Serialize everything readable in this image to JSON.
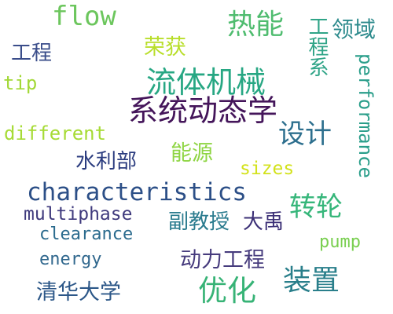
{
  "words": [
    {
      "key": "flow",
      "text": "flow",
      "color": "#6cc65d"
    },
    {
      "key": "reneng",
      "text": "热能",
      "color": "#4fbc6f"
    },
    {
      "key": "gongchengxi",
      "text": "工程系",
      "color": "#2fa487"
    },
    {
      "key": "lingyu",
      "text": "领域",
      "color": "#2c8a8c"
    },
    {
      "key": "gongcheng",
      "text": "工程",
      "color": "#3a4d8a"
    },
    {
      "key": "ronghuo",
      "text": "荣获",
      "color": "#b8de29"
    },
    {
      "key": "liuti",
      "text": "流体机械",
      "color": "#27a783"
    },
    {
      "key": "tip",
      "text": "tip",
      "color": "#a2d836"
    },
    {
      "key": "performance",
      "text": "performance",
      "color": "#2a9e8a"
    },
    {
      "key": "xitong",
      "text": "系统动态学",
      "color": "#44155a"
    },
    {
      "key": "sheji",
      "text": "设计",
      "color": "#2d6f8e"
    },
    {
      "key": "different",
      "text": "different",
      "color": "#a6db35"
    },
    {
      "key": "nengyuan",
      "text": "能源",
      "color": "#8fd544"
    },
    {
      "key": "shuilibu",
      "text": "水利部",
      "color": "#2b3c7f"
    },
    {
      "key": "sizes",
      "text": "sizes",
      "color": "#d3e21c"
    },
    {
      "key": "characteristics",
      "text": "characteristics",
      "color": "#2c4f87"
    },
    {
      "key": "zhuanlun",
      "text": "转轮",
      "color": "#36b67a"
    },
    {
      "key": "multiphase",
      "text": "multiphase",
      "color": "#3f3a7d"
    },
    {
      "key": "fujiaoshou",
      "text": "副教授",
      "color": "#2a7b8e"
    },
    {
      "key": "dayu",
      "text": "大禹",
      "color": "#3b2f76"
    },
    {
      "key": "clearance",
      "text": "clearance",
      "color": "#2b6b8e"
    },
    {
      "key": "pump",
      "text": "pump",
      "color": "#79cf50"
    },
    {
      "key": "energy",
      "text": "energy",
      "color": "#31688e"
    },
    {
      "key": "donglilgongcheng",
      "text": "动力工程",
      "color": "#463b7d"
    },
    {
      "key": "zhuangzhi",
      "text": "装置",
      "color": "#2a7f8b"
    },
    {
      "key": "qinghua",
      "text": "清华大学",
      "color": "#2c5788"
    },
    {
      "key": "youhua",
      "text": "优化",
      "color": "#37b376"
    }
  ]
}
